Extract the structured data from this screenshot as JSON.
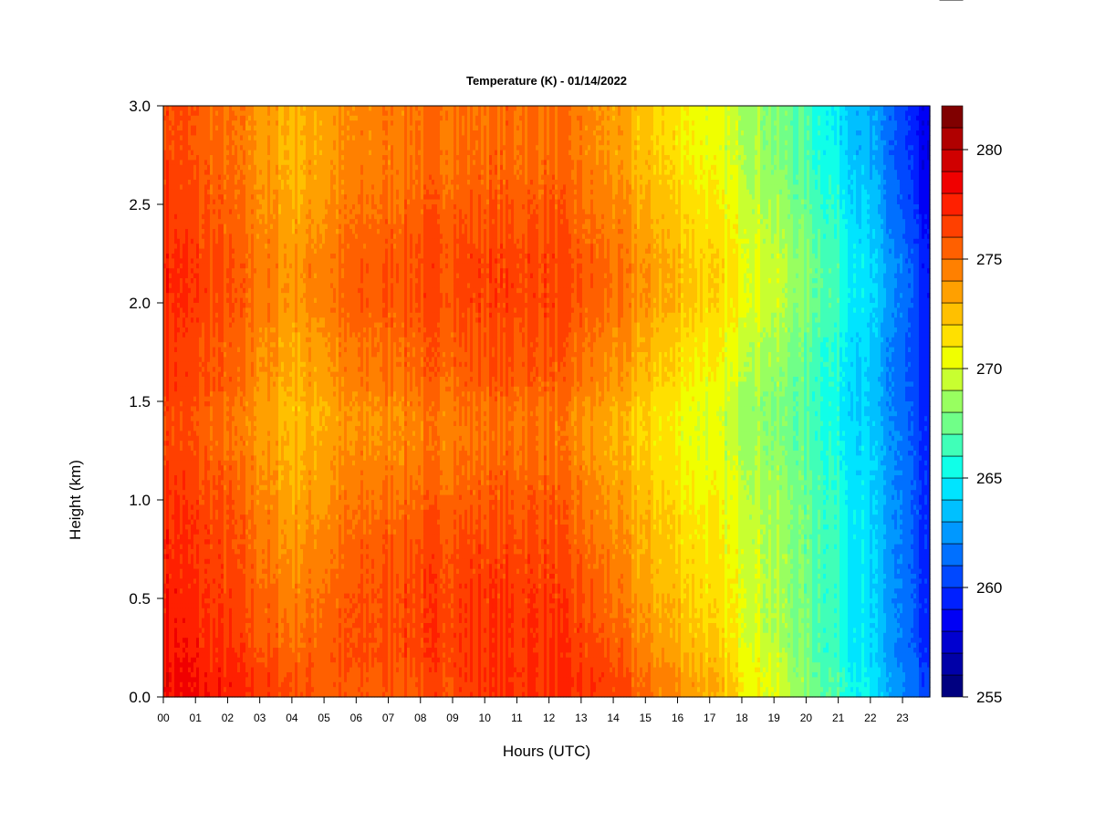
{
  "chart_data": {
    "type": "heatmap",
    "title": "Temperature (K) - 01/14/2022",
    "xlabel": "Hours (UTC)",
    "ylabel": "Height (km)",
    "x_ticks": [
      "00",
      "01",
      "02",
      "03",
      "04",
      "05",
      "06",
      "07",
      "08",
      "09",
      "10",
      "11",
      "12",
      "13",
      "14",
      "15",
      "16",
      "17",
      "18",
      "19",
      "20",
      "21",
      "22",
      "23"
    ],
    "xlim": [
      0,
      23.85
    ],
    "ylim": [
      0,
      3
    ],
    "y_ticks": [
      "0.0",
      "0.5",
      "1.0",
      "1.5",
      "2.0",
      "2.5",
      "3.0"
    ],
    "colorbar": {
      "min": 255,
      "max": 282,
      "step": 1,
      "ticks": [
        "255",
        "260",
        "265",
        "270",
        "275",
        "280"
      ],
      "colors": [
        "#000080",
        "#0000a8",
        "#0000d0",
        "#0000f5",
        "#0020ff",
        "#0048ff",
        "#0070ff",
        "#0098ff",
        "#00c0ff",
        "#00e4ff",
        "#10ffe8",
        "#40ffb8",
        "#70ff88",
        "#98ff60",
        "#c8ff30",
        "#f0ff00",
        "#ffe000",
        "#ffc000",
        "#ffa000",
        "#ff8000",
        "#ff6000",
        "#ff4000",
        "#ff2000",
        "#f00000",
        "#d00000",
        "#b00000",
        "#800000"
      ]
    },
    "x_hours": [
      0,
      2,
      4,
      6,
      8,
      10,
      12,
      13,
      14,
      15,
      16,
      17,
      18,
      19,
      20,
      21,
      22,
      23,
      23.85
    ],
    "heights_km": [
      0.0,
      0.05,
      0.1,
      0.2,
      0.3,
      0.5,
      0.7,
      0.9,
      1.1,
      1.3,
      1.45,
      1.6,
      1.8,
      2.0,
      2.2,
      2.4,
      2.6,
      2.8,
      3.0
    ],
    "temperature_K": [
      [
        278.5,
        277.5,
        276.0,
        275.5,
        276.0,
        277.0,
        277.0,
        276.8,
        276.5,
        275.0,
        274.0,
        273.0,
        271.5,
        270.0,
        268.0,
        266.5,
        264.5,
        262.0,
        259.5
      ],
      [
        278.5,
        277.5,
        276.0,
        275.5,
        276.0,
        277.0,
        277.0,
        277.0,
        276.5,
        275.0,
        274.0,
        273.0,
        271.5,
        270.0,
        268.0,
        266.5,
        264.5,
        262.0,
        259.5
      ],
      [
        278.5,
        277.5,
        276.0,
        275.5,
        276.0,
        277.0,
        277.2,
        277.0,
        276.5,
        275.0,
        274.0,
        273.0,
        271.5,
        270.0,
        268.0,
        266.5,
        264.5,
        262.0,
        259.5
      ],
      [
        278.2,
        277.0,
        275.5,
        276.0,
        276.5,
        277.0,
        277.0,
        276.5,
        276.0,
        274.5,
        273.5,
        272.5,
        271.0,
        269.5,
        267.5,
        266.0,
        264.0,
        261.5,
        259.0
      ],
      [
        278.0,
        276.8,
        275.0,
        276.0,
        276.5,
        277.0,
        277.0,
        276.5,
        275.5,
        274.0,
        273.0,
        272.0,
        270.5,
        269.0,
        267.5,
        266.0,
        264.0,
        261.5,
        259.0
      ],
      [
        277.8,
        276.5,
        274.5,
        275.8,
        276.5,
        276.8,
        276.8,
        276.0,
        275.0,
        273.5,
        272.5,
        271.5,
        270.5,
        269.0,
        267.5,
        266.0,
        264.0,
        261.5,
        259.0
      ],
      [
        277.5,
        276.2,
        274.0,
        275.5,
        276.3,
        276.5,
        276.5,
        275.5,
        274.5,
        273.0,
        272.0,
        271.2,
        270.3,
        269.0,
        267.5,
        266.0,
        264.0,
        261.5,
        259.0
      ],
      [
        277.5,
        276.0,
        273.5,
        275.0,
        275.8,
        276.0,
        276.0,
        275.0,
        274.0,
        272.8,
        271.8,
        271.0,
        270.0,
        268.8,
        267.5,
        266.0,
        264.0,
        261.5,
        259.0
      ],
      [
        277.0,
        275.5,
        273.0,
        274.5,
        275.0,
        275.5,
        275.5,
        274.5,
        273.5,
        272.3,
        271.3,
        270.5,
        269.7,
        268.5,
        267.3,
        265.8,
        264.0,
        261.5,
        259.0
      ],
      [
        276.5,
        275.0,
        272.8,
        274.0,
        274.5,
        275.0,
        275.0,
        274.0,
        273.0,
        271.8,
        270.8,
        270.0,
        269.2,
        268.2,
        267.0,
        265.5,
        263.8,
        261.5,
        259.0
      ],
      [
        276.5,
        275.0,
        272.5,
        273.8,
        274.5,
        275.0,
        275.0,
        274.0,
        273.0,
        271.8,
        270.8,
        270.0,
        269.0,
        268.0,
        266.8,
        265.3,
        263.5,
        261.3,
        258.8
      ],
      [
        277.0,
        275.5,
        273.0,
        274.5,
        275.3,
        275.7,
        275.7,
        274.8,
        273.8,
        272.5,
        271.5,
        270.5,
        269.5,
        268.3,
        267.0,
        265.5,
        263.5,
        261.2,
        258.6
      ],
      [
        277.0,
        275.5,
        273.2,
        274.8,
        275.5,
        276.0,
        276.0,
        275.2,
        274.3,
        273.0,
        272.0,
        271.0,
        270.0,
        268.8,
        267.3,
        265.7,
        263.7,
        261.2,
        258.5
      ],
      [
        277.5,
        276.0,
        273.8,
        275.5,
        276.2,
        276.5,
        276.5,
        275.8,
        275.0,
        273.8,
        272.8,
        271.8,
        270.8,
        269.5,
        268.0,
        266.2,
        264.0,
        261.5,
        258.5
      ],
      [
        277.5,
        276.0,
        273.8,
        275.5,
        276.2,
        276.5,
        276.5,
        275.8,
        275.0,
        273.8,
        272.8,
        271.8,
        270.8,
        269.5,
        268.0,
        266.2,
        264.0,
        261.5,
        258.5
      ],
      [
        277.0,
        275.5,
        273.3,
        275.0,
        275.8,
        276.0,
        276.0,
        275.3,
        274.5,
        273.3,
        272.3,
        271.3,
        270.3,
        269.0,
        267.5,
        265.8,
        263.6,
        261.0,
        258.0
      ],
      [
        276.8,
        275.2,
        273.0,
        274.5,
        275.3,
        275.5,
        275.5,
        275.0,
        274.0,
        272.8,
        271.8,
        270.8,
        269.8,
        268.5,
        267.0,
        265.3,
        263.2,
        260.6,
        257.6
      ],
      [
        276.5,
        275.0,
        272.8,
        274.2,
        275.0,
        275.2,
        275.2,
        274.5,
        273.5,
        272.3,
        271.3,
        270.3,
        269.3,
        268.0,
        266.6,
        264.8,
        262.8,
        260.3,
        257.3
      ],
      [
        276.5,
        275.0,
        272.8,
        274.2,
        275.0,
        275.2,
        275.2,
        274.5,
        273.5,
        272.3,
        271.3,
        270.3,
        269.3,
        268.0,
        266.6,
        264.8,
        262.8,
        260.3,
        257.3
      ]
    ]
  }
}
